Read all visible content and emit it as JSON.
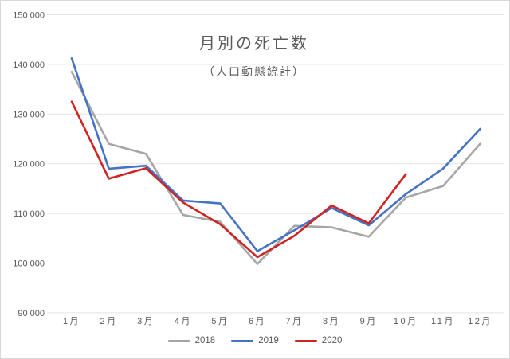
{
  "chart_data": {
    "type": "line",
    "title": "月別の死亡数",
    "subtitle": "（人口動態統計）",
    "categories": [
      "1月",
      "2月",
      "3月",
      "4月",
      "5月",
      "6月",
      "7月",
      "8月",
      "9月",
      "10月",
      "11月",
      "12月"
    ],
    "series": [
      {
        "name": "2018",
        "color": "#A6A6A6",
        "values": [
          138500,
          124000,
          122000,
          109700,
          108300,
          99800,
          107500,
          107200,
          105300,
          113200,
          115500,
          124000
        ]
      },
      {
        "name": "2019",
        "color": "#4472C4",
        "values": [
          141200,
          119000,
          119600,
          112600,
          112000,
          102400,
          106600,
          111100,
          107600,
          113900,
          119000,
          127000
        ]
      },
      {
        "name": "2020",
        "color": "#D02424",
        "values": [
          132500,
          117000,
          119100,
          112200,
          107800,
          101200,
          105500,
          111600,
          108000,
          117900
        ]
      }
    ],
    "ylim": [
      90000,
      150000
    ],
    "y_tick_step": 10000,
    "y_tick_labels": [
      "90 000",
      "100 000",
      "110 000",
      "120 000",
      "130 000",
      "140 000",
      "150 000"
    ],
    "grid": true,
    "gridline_color": "#E3E3E3",
    "legend_position": "bottom",
    "note_2020_ends": "10月"
  }
}
